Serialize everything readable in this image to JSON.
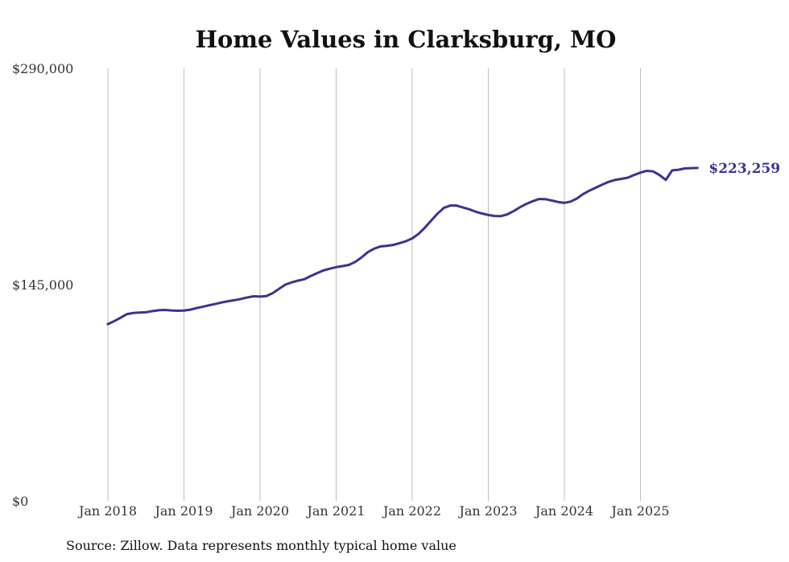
{
  "chart_data": {
    "type": "line",
    "title": "Home Values in Clarksburg, MO",
    "xlabel": "",
    "ylabel": "",
    "ylim": [
      0,
      290000
    ],
    "y_ticks": [
      {
        "value": 0,
        "label": "$0"
      },
      {
        "value": 145000,
        "label": "$145,000"
      },
      {
        "value": 290000,
        "label": "$290,000"
      }
    ],
    "x_ticks": [
      {
        "value": 2018,
        "label": "Jan 2018"
      },
      {
        "value": 2019,
        "label": "Jan 2019"
      },
      {
        "value": 2020,
        "label": "Jan 2020"
      },
      {
        "value": 2021,
        "label": "Jan 2021"
      },
      {
        "value": 2022,
        "label": "Jan 2022"
      },
      {
        "value": 2023,
        "label": "Jan 2023"
      },
      {
        "value": 2024,
        "label": "Jan 2024"
      },
      {
        "value": 2025,
        "label": "Jan 2025"
      }
    ],
    "xlim": [
      2018,
      2025.833
    ],
    "grid": "vertical",
    "series": [
      {
        "name": "Typical home value",
        "color": "#3b3491",
        "end_label": "$223,259",
        "points": [
          [
            2018.0,
            118500
          ],
          [
            2018.083,
            120500
          ],
          [
            2018.167,
            122800
          ],
          [
            2018.25,
            125200
          ],
          [
            2018.333,
            126000
          ],
          [
            2018.417,
            126300
          ],
          [
            2018.5,
            126500
          ],
          [
            2018.583,
            127200
          ],
          [
            2018.667,
            127800
          ],
          [
            2018.75,
            128000
          ],
          [
            2018.833,
            127700
          ],
          [
            2018.917,
            127500
          ],
          [
            2019.0,
            127600
          ],
          [
            2019.083,
            128200
          ],
          [
            2019.167,
            129300
          ],
          [
            2019.25,
            130200
          ],
          [
            2019.333,
            131200
          ],
          [
            2019.417,
            132100
          ],
          [
            2019.5,
            133100
          ],
          [
            2019.583,
            133900
          ],
          [
            2019.667,
            134600
          ],
          [
            2019.75,
            135400
          ],
          [
            2019.833,
            136400
          ],
          [
            2019.917,
            137200
          ],
          [
            2020.0,
            137000
          ],
          [
            2020.083,
            137300
          ],
          [
            2020.167,
            139300
          ],
          [
            2020.25,
            142200
          ],
          [
            2020.333,
            145000
          ],
          [
            2020.417,
            146500
          ],
          [
            2020.5,
            147700
          ],
          [
            2020.583,
            148600
          ],
          [
            2020.667,
            150800
          ],
          [
            2020.75,
            152700
          ],
          [
            2020.833,
            154500
          ],
          [
            2020.917,
            155700
          ],
          [
            2021.0,
            156700
          ],
          [
            2021.083,
            157400
          ],
          [
            2021.167,
            158200
          ],
          [
            2021.25,
            160200
          ],
          [
            2021.333,
            163200
          ],
          [
            2021.417,
            166800
          ],
          [
            2021.5,
            169100
          ],
          [
            2021.583,
            170600
          ],
          [
            2021.667,
            171000
          ],
          [
            2021.75,
            171600
          ],
          [
            2021.833,
            172800
          ],
          [
            2021.917,
            174100
          ],
          [
            2022.0,
            176000
          ],
          [
            2022.083,
            179000
          ],
          [
            2022.167,
            183200
          ],
          [
            2022.25,
            188000
          ],
          [
            2022.333,
            192600
          ],
          [
            2022.417,
            196500
          ],
          [
            2022.5,
            198000
          ],
          [
            2022.583,
            198000
          ],
          [
            2022.667,
            196700
          ],
          [
            2022.75,
            195500
          ],
          [
            2022.833,
            193900
          ],
          [
            2022.917,
            192700
          ],
          [
            2023.0,
            191700
          ],
          [
            2023.083,
            191000
          ],
          [
            2023.167,
            190900
          ],
          [
            2023.25,
            192100
          ],
          [
            2023.333,
            194300
          ],
          [
            2023.417,
            196900
          ],
          [
            2023.5,
            199100
          ],
          [
            2023.583,
            200900
          ],
          [
            2023.667,
            202400
          ],
          [
            2023.75,
            202300
          ],
          [
            2023.833,
            201400
          ],
          [
            2023.917,
            200400
          ],
          [
            2024.0,
            199800
          ],
          [
            2024.083,
            200700
          ],
          [
            2024.167,
            202800
          ],
          [
            2024.25,
            205800
          ],
          [
            2024.333,
            208100
          ],
          [
            2024.417,
            210100
          ],
          [
            2024.5,
            212100
          ],
          [
            2024.583,
            213900
          ],
          [
            2024.667,
            215200
          ],
          [
            2024.75,
            215900
          ],
          [
            2024.833,
            216700
          ],
          [
            2024.917,
            218500
          ],
          [
            2025.0,
            220100
          ],
          [
            2025.083,
            221300
          ],
          [
            2025.167,
            220900
          ],
          [
            2025.25,
            218500
          ],
          [
            2025.333,
            215200
          ],
          [
            2025.417,
            221600
          ],
          [
            2025.5,
            222000
          ],
          [
            2025.583,
            222900
          ],
          [
            2025.667,
            223100
          ],
          [
            2025.75,
            223259
          ]
        ]
      }
    ]
  },
  "footer": {
    "source": "Source: Zillow. Data represents monthly typical home value"
  }
}
